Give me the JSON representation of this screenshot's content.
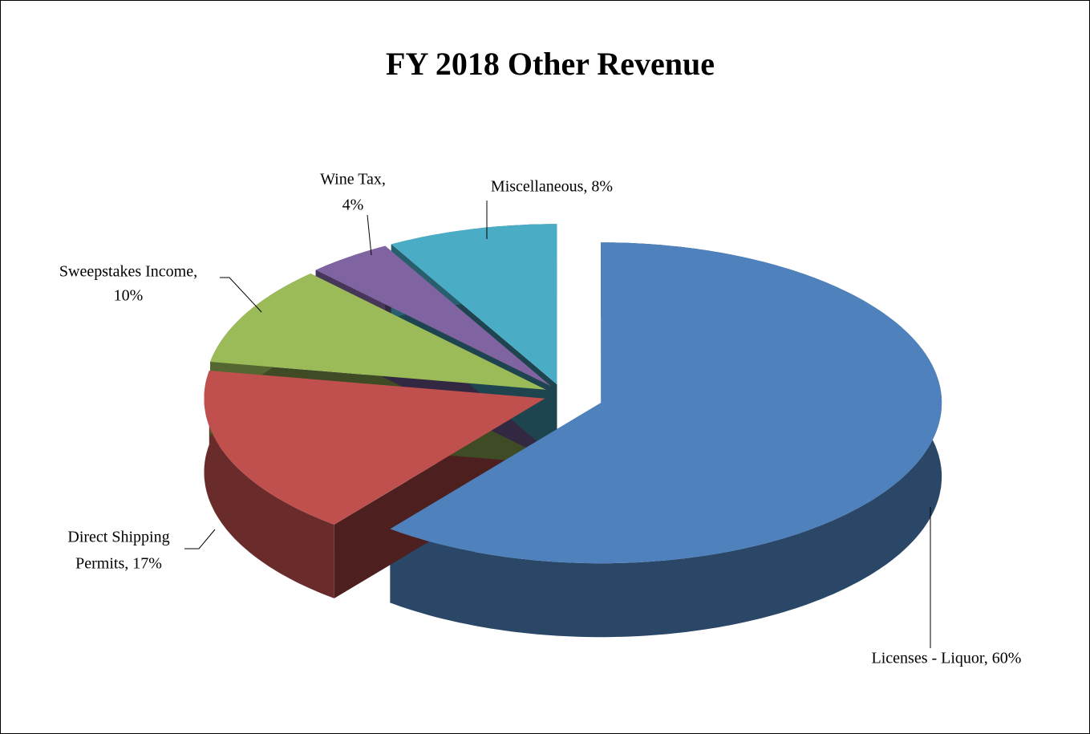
{
  "chart_data": {
    "type": "pie3d",
    "title": "FY 2018 Other Revenue",
    "values": [
      60,
      17,
      10,
      4,
      8
    ],
    "data_labels": [
      [
        "Licenses - Liquor, 60%"
      ],
      [
        "Direct Shipping",
        "Permits, 17%"
      ],
      [
        "Sweepstakes Income,",
        "10%"
      ],
      [
        "Wine Tax,",
        "4%"
      ],
      [
        "Miscellaneous, 8%"
      ]
    ],
    "colors": [
      "#4f81bd",
      "#c0504d",
      "#9bbb59",
      "#8064a2",
      "#4bacc6"
    ]
  }
}
